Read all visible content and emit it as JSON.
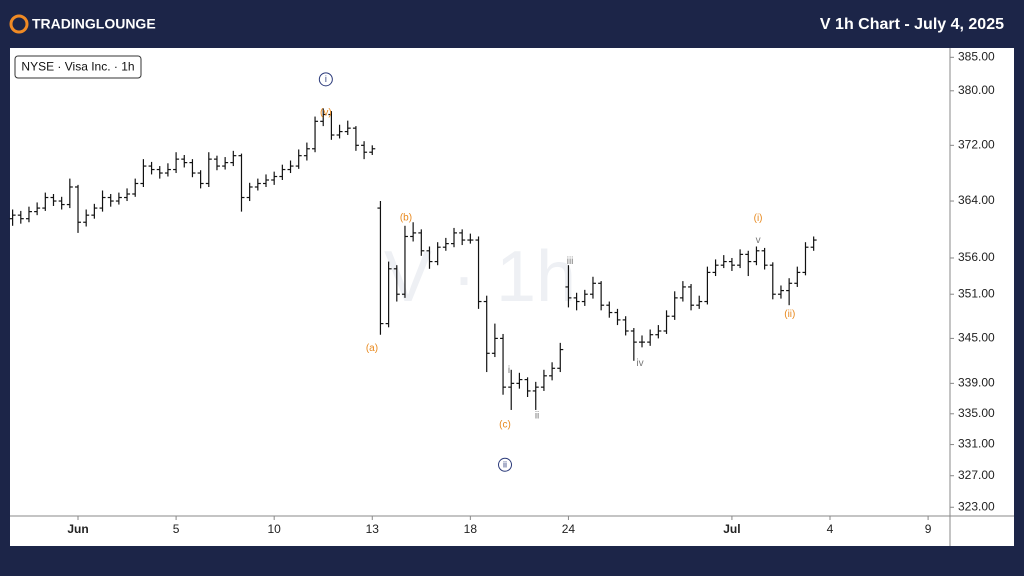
{
  "header": {
    "brand": "TRADINGLOUNGE",
    "title": "V 1h Chart - July 4, 2025"
  },
  "chart_data": {
    "type": "ohlc",
    "legend": "NYSE · Visa Inc. · 1h",
    "watermark": "V · 1h",
    "log": true,
    "color": "#111111",
    "xlim": [
      -2.08,
      26.67
    ],
    "xticks": [
      {
        "value": 0,
        "label": "Jun"
      },
      {
        "value": 3,
        "label": "5"
      },
      {
        "value": 6,
        "label": "10"
      },
      {
        "value": 9,
        "label": "13"
      },
      {
        "value": 12,
        "label": "18"
      },
      {
        "value": 15,
        "label": "24"
      },
      {
        "value": 20,
        "label": "Jul"
      },
      {
        "value": 23,
        "label": "4"
      },
      {
        "value": 26,
        "label": "9"
      }
    ],
    "ylim": [
      321.9,
      386.4
    ],
    "yticks": [
      {
        "value": 385,
        "label": "385.00"
      },
      {
        "value": 380,
        "label": "380.00"
      },
      {
        "value": 372,
        "label": "372.00"
      },
      {
        "value": 364,
        "label": "364.00"
      },
      {
        "value": 356,
        "label": "356.00"
      },
      {
        "value": 351,
        "label": "351.00"
      },
      {
        "value": 345,
        "label": "345.00"
      },
      {
        "value": 339,
        "label": "339.00"
      },
      {
        "value": 335,
        "label": "335.00"
      },
      {
        "value": 331,
        "label": "331.00"
      },
      {
        "value": 327,
        "label": "327.00"
      },
      {
        "value": 323,
        "label": "323.00"
      }
    ],
    "x": [
      -2,
      -1.75,
      -1.5,
      -1.25,
      -1,
      -0.75,
      -0.5,
      -0.25,
      0,
      0.25,
      0.5,
      0.75,
      1,
      1.25,
      1.5,
      1.75,
      2,
      2.25,
      2.5,
      2.75,
      3,
      3.25,
      3.5,
      3.75,
      4,
      4.25,
      4.5,
      4.75,
      5,
      5.25,
      5.5,
      5.75,
      6,
      6.25,
      6.5,
      6.75,
      7,
      7.25,
      7.5,
      7.75,
      8,
      8.25,
      8.5,
      8.75,
      9,
      9.25,
      9.5,
      9.75,
      10,
      10.25,
      10.5,
      10.75,
      11,
      11.25,
      11.5,
      11.75,
      12,
      12.25,
      12.5,
      12.75,
      13,
      13.25,
      13.5,
      13.75,
      14,
      14.25,
      14.5,
      14.75,
      15,
      15.25,
      15.5,
      15.75,
      16,
      16.25,
      16.5,
      16.75,
      17,
      17.25,
      17.5,
      17.75,
      18,
      18.25,
      18.5,
      18.75,
      19,
      19.25,
      19.5,
      19.75,
      20,
      20.25,
      20.5,
      20.75,
      21,
      21.25,
      21.5,
      21.75,
      22,
      22.25,
      22.5
    ],
    "ohlc": [
      [
        361.5,
        362.8,
        360.5,
        362
      ],
      [
        362,
        362.6,
        360.8,
        361.5
      ],
      [
        361.5,
        363.2,
        361,
        362.5
      ],
      [
        362.5,
        363.8,
        362,
        363
      ],
      [
        363,
        365.2,
        362.6,
        364.5
      ],
      [
        364.5,
        365,
        363.3,
        364
      ],
      [
        364,
        364.6,
        362.8,
        363.5
      ],
      [
        363.5,
        367.2,
        363,
        366
      ],
      [
        366,
        366.3,
        359.5,
        361
      ],
      [
        361,
        362.8,
        360.4,
        362
      ],
      [
        362,
        363.6,
        361.5,
        363
      ],
      [
        363,
        365.5,
        362.5,
        364.5
      ],
      [
        364.5,
        365,
        363.2,
        364
      ],
      [
        364,
        365.2,
        363.5,
        364.5
      ],
      [
        364.5,
        365.8,
        364,
        365
      ],
      [
        365,
        367.2,
        364.6,
        366.5
      ],
      [
        366.5,
        370,
        366,
        369
      ],
      [
        369,
        369.6,
        367.8,
        368.5
      ],
      [
        368.5,
        369,
        367.2,
        368
      ],
      [
        368,
        369.4,
        367.5,
        368.5
      ],
      [
        368.5,
        371,
        368,
        370
      ],
      [
        370,
        370.6,
        368.8,
        369.5
      ],
      [
        369.5,
        370,
        367.4,
        368
      ],
      [
        368,
        368.4,
        365.8,
        366.5
      ],
      [
        366.5,
        371,
        366,
        370
      ],
      [
        370,
        370.5,
        368.4,
        369
      ],
      [
        369,
        370.3,
        368.5,
        369.5
      ],
      [
        369.5,
        371.2,
        369,
        370.5
      ],
      [
        370.5,
        370.8,
        362.5,
        364.5
      ],
      [
        364.5,
        366.6,
        364,
        366
      ],
      [
        366,
        367.2,
        365.5,
        366.5
      ],
      [
        366.5,
        367.8,
        366,
        367
      ],
      [
        367,
        368.2,
        366.3,
        367.5
      ],
      [
        367.5,
        369.2,
        367,
        368.5
      ],
      [
        368.5,
        369.8,
        368,
        369
      ],
      [
        369,
        371.4,
        368.6,
        370.5
      ],
      [
        370.5,
        372.4,
        369.8,
        371.5
      ],
      [
        371.5,
        376.2,
        371,
        375.5
      ],
      [
        375.5,
        377.4,
        374.8,
        376.5
      ],
      [
        376.5,
        377,
        372.8,
        373.5
      ],
      [
        373.5,
        375,
        373,
        374
      ],
      [
        374,
        375.6,
        373.5,
        374.5
      ],
      [
        374.5,
        374.8,
        371.2,
        372
      ],
      [
        372,
        372.6,
        370,
        371
      ],
      [
        371,
        372,
        370.6,
        371.5
      ],
      [
        363,
        364,
        345.5,
        347
      ],
      [
        347,
        355.5,
        346.5,
        354.5
      ],
      [
        354.5,
        355,
        350,
        351
      ],
      [
        351,
        360.5,
        350.5,
        359
      ],
      [
        359,
        361,
        358.3,
        359.5
      ],
      [
        359.5,
        360,
        356.3,
        357
      ],
      [
        357,
        357.6,
        354.5,
        355.5
      ],
      [
        355.5,
        358.2,
        355,
        357.5
      ],
      [
        357.5,
        358.8,
        357,
        358
      ],
      [
        358,
        360.2,
        357.5,
        359.5
      ],
      [
        359.5,
        360,
        357.8,
        358.5
      ],
      [
        358.5,
        359.4,
        358,
        358.5
      ],
      [
        358.5,
        359,
        349,
        350
      ],
      [
        350,
        350.8,
        340.5,
        343
      ],
      [
        343,
        347,
        342.5,
        345
      ],
      [
        345,
        345.6,
        337.5,
        338.5
      ],
      [
        338.5,
        340.8,
        335.5,
        339
      ],
      [
        339,
        340.4,
        338.3,
        339.5
      ],
      [
        339.5,
        339.8,
        337.2,
        338
      ],
      [
        338,
        339.2,
        335.5,
        338.5
      ],
      [
        338.5,
        340.8,
        338,
        340
      ],
      [
        340,
        341.8,
        339.4,
        341
      ],
      [
        341,
        344.4,
        340.5,
        343.5
      ],
      [
        352,
        355,
        349.2,
        350.5
      ],
      [
        350.5,
        351.2,
        348.8,
        350
      ],
      [
        350,
        351.6,
        349.4,
        351
      ],
      [
        351,
        353.4,
        350.4,
        352.5
      ],
      [
        352.5,
        352.8,
        348.8,
        349.5
      ],
      [
        349.5,
        350,
        347.8,
        348.5
      ],
      [
        348.5,
        349,
        346.8,
        347.5
      ],
      [
        347.5,
        348,
        345.4,
        346
      ],
      [
        346,
        346.4,
        342,
        344.5
      ],
      [
        344.5,
        345.4,
        343.8,
        344.5
      ],
      [
        344.5,
        346.2,
        344,
        345.5
      ],
      [
        345.5,
        346.8,
        345,
        346
      ],
      [
        346,
        348.8,
        345.6,
        348
      ],
      [
        348,
        351.4,
        347.5,
        350.5
      ],
      [
        350.5,
        352.8,
        350,
        352
      ],
      [
        352,
        352.4,
        348.8,
        349.5
      ],
      [
        349.5,
        350.8,
        349,
        350
      ],
      [
        350,
        354.8,
        349.6,
        354
      ],
      [
        354,
        355.8,
        353.5,
        355
      ],
      [
        355,
        356.4,
        354.6,
        355.5
      ],
      [
        355.5,
        356,
        354.2,
        355
      ],
      [
        355,
        357.2,
        354.6,
        356.5
      ],
      [
        356.5,
        357,
        353.5,
        355.5
      ],
      [
        355.5,
        357.6,
        355,
        357
      ],
      [
        357,
        357.4,
        354.4,
        355
      ],
      [
        355,
        355.4,
        350.3,
        351
      ],
      [
        351,
        352.2,
        350.4,
        351.5
      ],
      [
        351.5,
        353.2,
        349.5,
        352.5
      ],
      [
        352.5,
        354.8,
        352,
        354
      ],
      [
        354,
        358.2,
        353.6,
        357.5
      ],
      [
        357.5,
        359,
        357,
        358.5
      ]
    ],
    "annotations": [
      {
        "text": "i",
        "x": 7.58,
        "y": 381.7,
        "color": "#2b3a7a",
        "style": "circled"
      },
      {
        "text": "(v)",
        "x": 7.58,
        "y": 376.8,
        "color": "#e8891e"
      },
      {
        "text": "(a)",
        "x": 8.99,
        "y": 343.7,
        "color": "#e8891e"
      },
      {
        "text": "(b)",
        "x": 10.03,
        "y": 361.7,
        "color": "#e8891e"
      },
      {
        "text": "(c)",
        "x": 13.06,
        "y": 333.6,
        "color": "#e8891e"
      },
      {
        "text": "ii",
        "x": 13.06,
        "y": 328.4,
        "color": "#2b3a7a",
        "style": "circled"
      },
      {
        "text": "i",
        "x": 13.18,
        "y": 340.8,
        "color": "#777777"
      },
      {
        "text": "ii",
        "x": 14.04,
        "y": 334.8,
        "color": "#777777"
      },
      {
        "text": "iii",
        "x": 15.05,
        "y": 355.6,
        "color": "#777777"
      },
      {
        "text": "iv",
        "x": 17.19,
        "y": 341.7,
        "color": "#777777"
      },
      {
        "text": "v",
        "x": 20.8,
        "y": 358.5,
        "color": "#777777"
      },
      {
        "text": "(i)",
        "x": 20.8,
        "y": 361.6,
        "color": "#e8891e"
      },
      {
        "text": "(ii)",
        "x": 21.77,
        "y": 348.3,
        "color": "#e8891e"
      }
    ]
  }
}
